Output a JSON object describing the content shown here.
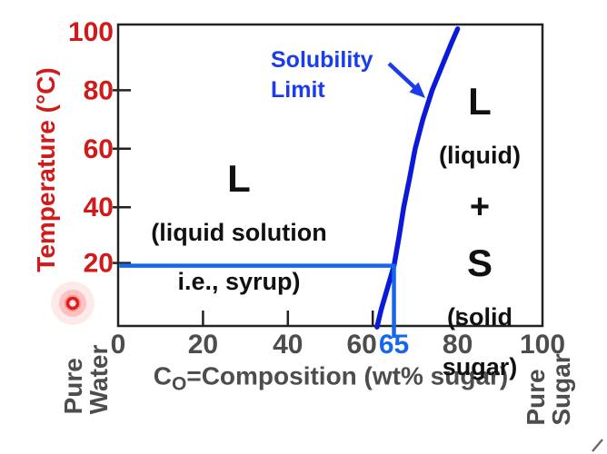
{
  "chart_data": {
    "type": "line",
    "xlabel": "CO=Composition (wt% sugar)",
    "ylabel": "Temperature (°C)",
    "xlim": [
      0,
      100
    ],
    "ylim": [
      0,
      100
    ],
    "grid": false,
    "legend": "none",
    "xticks": [
      {
        "value": 0,
        "label": "0",
        "tick": false
      },
      {
        "value": 20,
        "label": "20",
        "tick": true
      },
      {
        "value": 40,
        "label": "40",
        "tick": true
      },
      {
        "value": 60,
        "label": "60",
        "tick": true,
        "dx": -12
      },
      {
        "value": 65,
        "label": "65",
        "tick": false,
        "highlight": true
      },
      {
        "value": 80,
        "label": "80",
        "tick": true
      },
      {
        "value": 100,
        "label": "100",
        "tick": false
      }
    ],
    "yticks": [
      {
        "value": 20,
        "label": "20",
        "tick": true,
        "dy": -3
      },
      {
        "value": 40,
        "label": "40",
        "tick": true
      },
      {
        "value": 60,
        "label": "60",
        "tick": true
      },
      {
        "value": 80,
        "label": "80",
        "tick": true
      },
      {
        "value": 100,
        "label": "100",
        "tick": false
      }
    ],
    "series": [
      {
        "name": "Solubility Limit",
        "points_wtpct_vs_degC": [
          [
            61,
            -1
          ],
          [
            62,
            5
          ],
          [
            63,
            10
          ],
          [
            64,
            15
          ],
          [
            65,
            20
          ],
          [
            66.2,
            30
          ],
          [
            67.3,
            40
          ],
          [
            68.7,
            50
          ],
          [
            70,
            60
          ],
          [
            71.8,
            70
          ],
          [
            74,
            80
          ],
          [
            76.8,
            90
          ],
          [
            78.5,
            96
          ],
          [
            80,
            101
          ]
        ]
      }
    ],
    "annotations": {
      "curve_label": "Solubility Limit",
      "tie_line": {
        "temperature_degC": 20,
        "composition_wtpct": 65
      },
      "regions": [
        {
          "symbol": "L",
          "description": "(liquid solution i.e., syrup)"
        },
        {
          "symbol": "L + S",
          "description": "(liquid) + (solid sugar)"
        }
      ]
    }
  },
  "labels": {
    "y_axis": "Temperature (°C)",
    "x_axis_base": "C",
    "x_axis_sub": "O",
    "x_axis_rest": "=Composition (wt% sugar)",
    "pure_water": "Pure\nWater",
    "pure_sugar": "Pure\nSugar",
    "solubility_limit": "Solubility\nLimit",
    "region_syrup": {
      "symbol": "L",
      "line1": "(liquid solution",
      "line2": "i.e., syrup)"
    },
    "region_two_phase": {
      "symbol_liquid": "L",
      "desc_liquid": "(liquid)",
      "plus": "+",
      "symbol_solid": "S",
      "desc_solid_line1": "(solid",
      "desc_solid_line2": "sugar)"
    }
  },
  "colors": {
    "axis_label_red": "#d11a1a",
    "axis_text_gray": "#4d4d4d",
    "frame_black": "#222222",
    "curve_blue": "#0a1ad8",
    "tie_line_blue": "#1668e8",
    "annotation_blue": "#1b3ceb",
    "laser_red": "#e31b1b"
  }
}
